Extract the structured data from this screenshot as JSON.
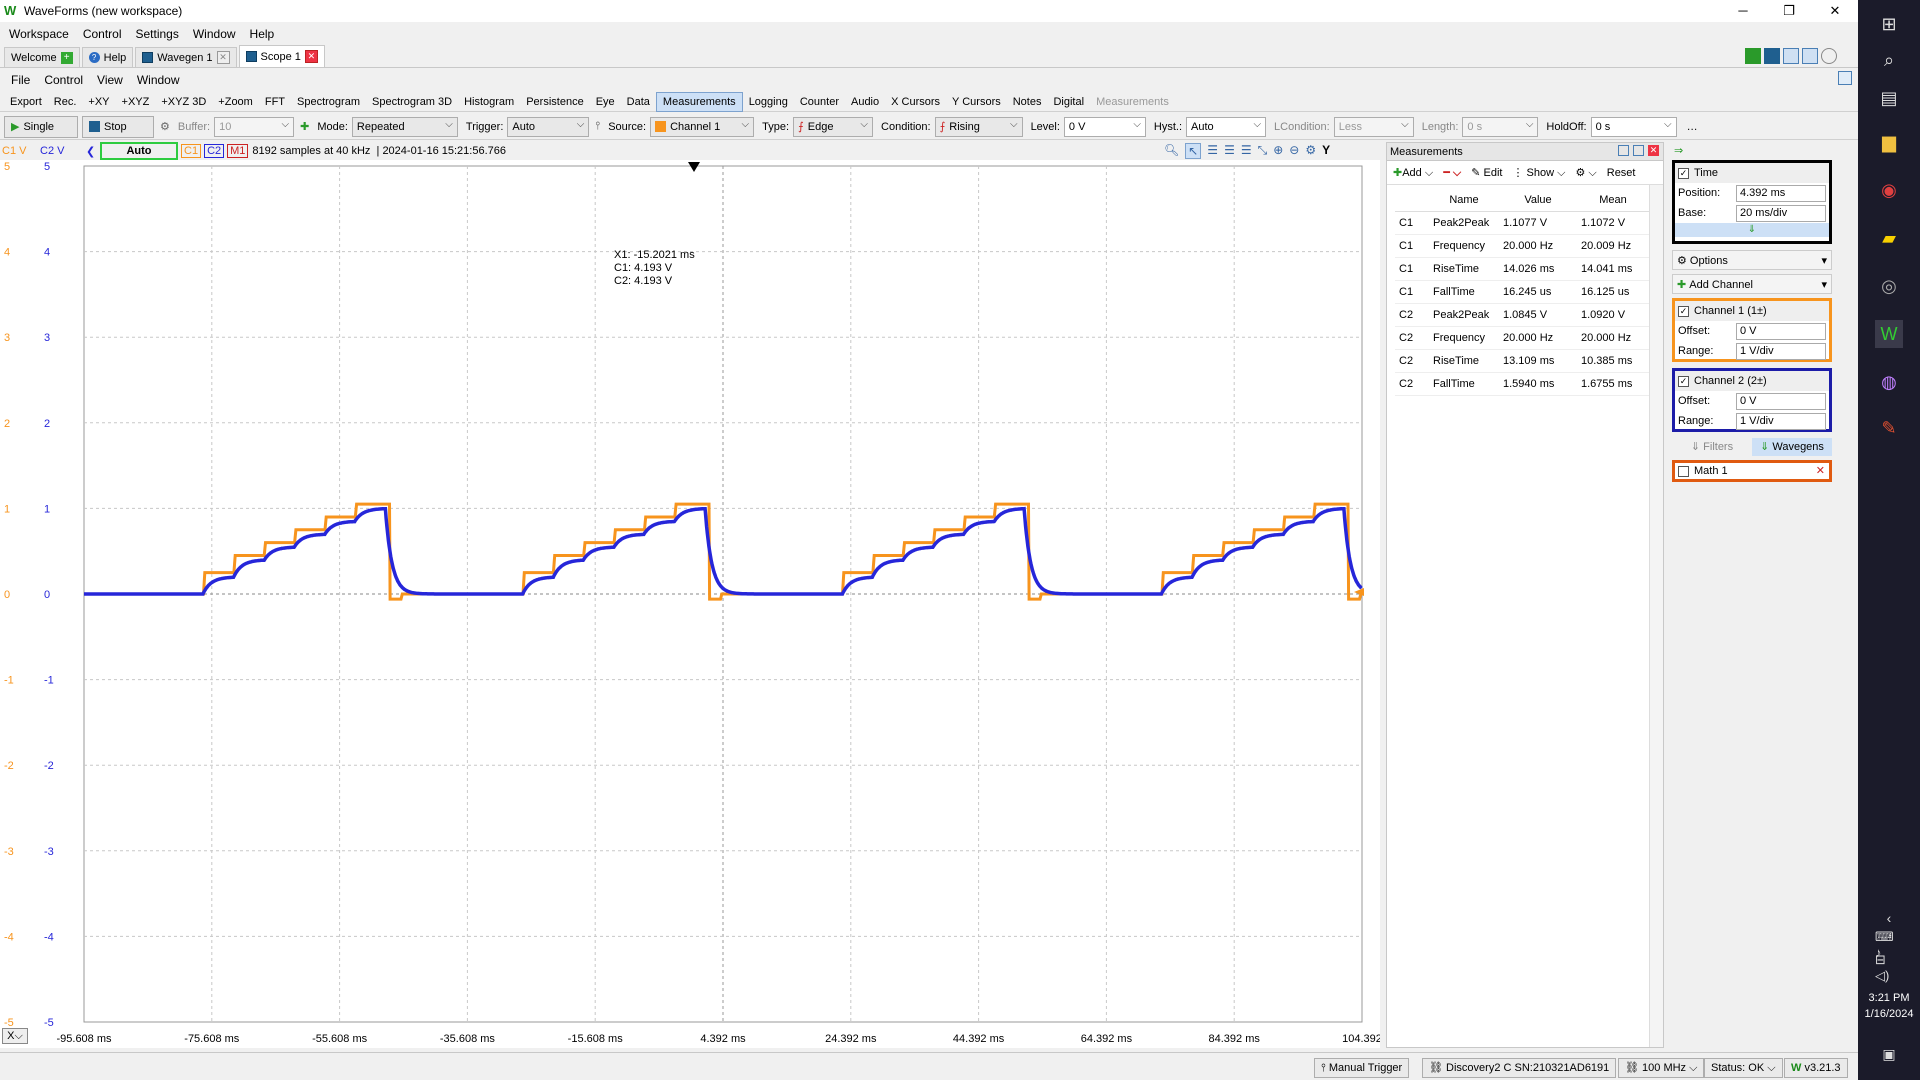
{
  "window": {
    "title": "WaveForms (new workspace)"
  },
  "menu_main": [
    "Workspace",
    "Control",
    "Settings",
    "Window",
    "Help"
  ],
  "tabs": [
    {
      "label": "Welcome"
    },
    {
      "label": "Help"
    },
    {
      "label": "Wavegen 1"
    },
    {
      "label": "Scope 1"
    }
  ],
  "menu_scope": [
    "File",
    "Control",
    "View",
    "Window"
  ],
  "instruments": [
    "Export",
    "Rec.",
    "+XY",
    "+XYZ",
    "+XYZ 3D",
    "+Zoom",
    "FFT",
    "Spectrogram",
    "Spectrogram 3D",
    "Histogram",
    "Persistence",
    "Eye",
    "Data",
    "Measurements",
    "Logging",
    "Counter",
    "Audio",
    "X Cursors",
    "Y Cursors",
    "Notes",
    "Digital",
    "Measurements"
  ],
  "control": {
    "single": "Single",
    "stop": "Stop",
    "buffer_label": "Buffer:",
    "buffer": "10",
    "mode_label": "Mode:",
    "mode": "Repeated",
    "trigger_label": "Trigger:",
    "trigger": "Auto",
    "source_label": "Source:",
    "source": "Channel 1",
    "type_label": "Type:",
    "type": "Edge",
    "condition_label": "Condition:",
    "condition": "Rising",
    "level_label": "Level:",
    "level": "0 V",
    "hyst_label": "Hyst.:",
    "hyst": "Auto",
    "lcond_label": "LCondition:",
    "lcond": "Less",
    "length_label": "Length:",
    "length": "0 s",
    "holdoff_label": "HoldOff:",
    "holdoff": "0 s"
  },
  "chbar": {
    "c1v": "C1 V",
    "c2v": "C2 V",
    "auto": "Auto",
    "c1": "C1",
    "c2": "C2",
    "m1": "M1",
    "info": "8192 samples at 40 kHz  | 2024-01-16 15:21:56.766"
  },
  "cursor": {
    "x1": "X1: -15.2021 ms",
    "c1": "C1: 4.193 V",
    "c2": "C2: 4.193 V"
  },
  "chart_data": {
    "type": "line",
    "x_ticks": [
      "-95.608 ms",
      "-75.608 ms",
      "-55.608 ms",
      "-35.608 ms",
      "-15.608 ms",
      "4.392 ms",
      "24.392 ms",
      "44.392 ms",
      "64.392 ms",
      "84.392 ms",
      "104.392"
    ],
    "y_ticks": [
      "5",
      "4",
      "3",
      "2",
      "1",
      "0",
      "-1",
      "-2",
      "-3",
      "-4",
      "-5"
    ],
    "xlim_ms": [
      -95.608,
      104.392
    ],
    "ylim": [
      -5,
      5
    ],
    "period_ms": 50,
    "series": [
      {
        "name": "C1",
        "color": "#f7941d",
        "shape": "staircase",
        "levels": [
          0,
          0.25,
          0.45,
          0.6,
          0.75,
          0.9,
          1.05
        ]
      },
      {
        "name": "C2",
        "color": "#2626d9",
        "shape": "filtered staircase",
        "levels": [
          0,
          0.2,
          0.4,
          0.55,
          0.7,
          0.85,
          1.0
        ]
      }
    ]
  },
  "measurements": {
    "title": "Measurements",
    "toolbar": {
      "add": "Add",
      "edit": "Edit",
      "show": "Show",
      "reset": "Reset"
    },
    "columns": [
      "Name",
      "Value",
      "Mean"
    ],
    "rows": [
      {
        "ch": "C1",
        "name": "Peak2Peak",
        "value": "1.1077 V",
        "mean": "1.1072 V"
      },
      {
        "ch": "C1",
        "name": "Frequency",
        "value": "20.000 Hz",
        "mean": "20.009 Hz"
      },
      {
        "ch": "C1",
        "name": "RiseTime",
        "value": "14.026 ms",
        "mean": "14.041 ms"
      },
      {
        "ch": "C1",
        "name": "FallTime",
        "value": "16.245 us",
        "mean": "16.125 us"
      },
      {
        "ch": "C2",
        "name": "Peak2Peak",
        "value": "1.0845 V",
        "mean": "1.0920 V"
      },
      {
        "ch": "C2",
        "name": "Frequency",
        "value": "20.000 Hz",
        "mean": "20.000 Hz"
      },
      {
        "ch": "C2",
        "name": "RiseTime",
        "value": "13.109 ms",
        "mean": "10.385 ms"
      },
      {
        "ch": "C2",
        "name": "FallTime",
        "value": "1.5940 ms",
        "mean": "1.6755 ms"
      }
    ]
  },
  "side": {
    "time": {
      "title": "Time",
      "pos_label": "Position:",
      "pos": "4.392 ms",
      "base_label": "Base:",
      "base": "20 ms/div"
    },
    "options": "Options",
    "add_channel": "Add Channel",
    "ch1": {
      "title": "Channel 1 (1±)",
      "off_label": "Offset:",
      "off": "0 V",
      "range_label": "Range:",
      "range": "1 V/div"
    },
    "ch2": {
      "title": "Channel 2 (2±)",
      "off_label": "Offset:",
      "off": "0 V",
      "range_label": "Range:",
      "range": "1 V/div"
    },
    "filters": "Filters",
    "wavegens": "Wavegens",
    "math": "Math 1"
  },
  "status": {
    "manual": "Manual Trigger",
    "device": "Discovery2 C SN:210321AD6191",
    "freq": "100 MHz",
    "state": "Status: OK",
    "ver": "v3.21.3"
  },
  "clock": {
    "time": "3:21 PM",
    "date": "1/16/2024"
  }
}
